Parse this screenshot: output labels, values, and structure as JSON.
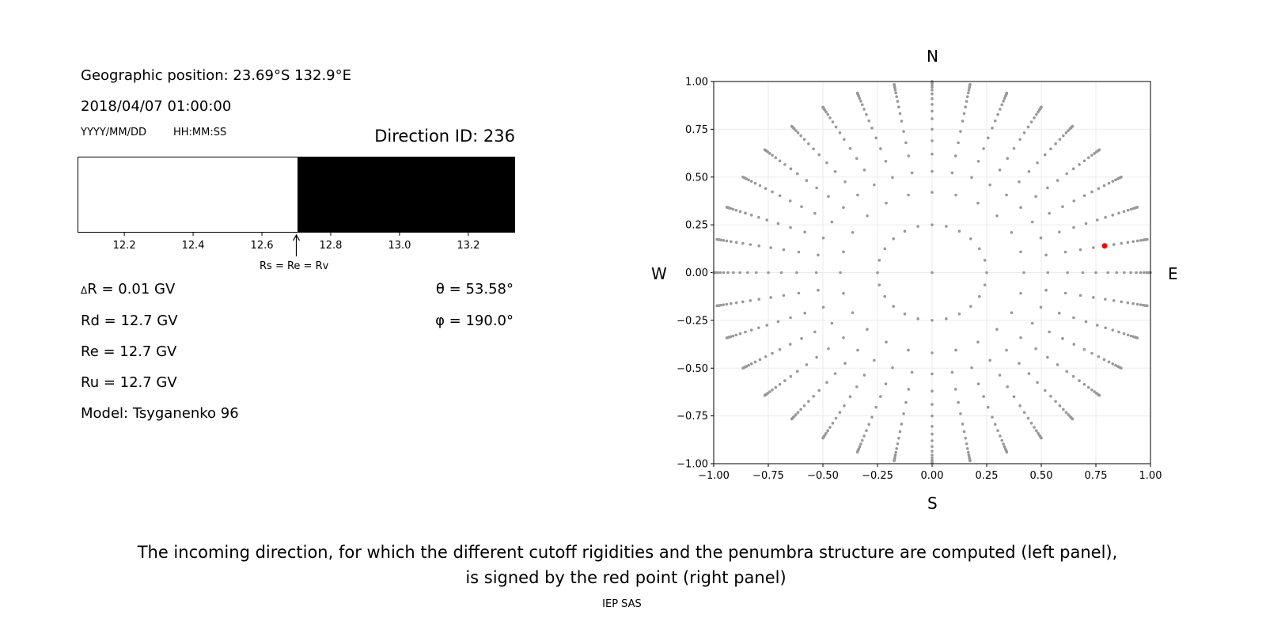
{
  "left_panel": {
    "geo_position": "Geographic position: 23.69°S 132.9°E",
    "datetime": "2018/04/07 01:00:00",
    "date_format": "YYYY/MM/DD",
    "time_format": "HH:MM:SS",
    "direction_id": "Direction ID: 236",
    "delta_r": "R = 0.01 GV",
    "delta_symbol": "Δ",
    "rd": "Rd = 12.7 GV",
    "re": "Re = 12.7 GV",
    "ru": "Ru = 12.7 GV",
    "model": "Model: Tsyganenko 96",
    "theta": "θ = 53.58°",
    "phi": "φ = 190.0°",
    "arrow_label": "Rs = Re = Rv"
  },
  "compass": {
    "n": "N",
    "s": "S",
    "w": "W",
    "e": "E"
  },
  "caption": {
    "line1": "The incoming direction, for which the different cutoff rigidities and the penumbra structure are computed (left panel),",
    "line2": "is signed by the red point (right panel)",
    "credit": "IEP SAS"
  },
  "chart_data": [
    {
      "type": "bar",
      "description_of_marks": "penumbra band: allowed (white) below cutoff, forbidden (black) above",
      "xlim": [
        12.064,
        13.336
      ],
      "xticks": [
        "12.2",
        "12.4",
        "12.6",
        "12.8",
        "13.0",
        "13.2"
      ],
      "xtick_values": [
        12.2,
        12.4,
        12.6,
        12.8,
        13.0,
        13.2
      ],
      "cutoff": 12.7,
      "colors": {
        "below": "#ffffff",
        "above": "#000000"
      }
    },
    {
      "type": "scatter",
      "xlim": [
        -1,
        1
      ],
      "ylim": [
        -1,
        1
      ],
      "grid": true,
      "xticks": [
        "−1.00",
        "−0.75",
        "−0.50",
        "−0.25",
        "0.00",
        "0.25",
        "0.50",
        "0.75",
        "1.00"
      ],
      "yticks": [
        "−1.00",
        "−0.75",
        "−0.50",
        "−0.25",
        "0.00",
        "0.25",
        "0.50",
        "0.75",
        "1.00"
      ],
      "tick_values": [
        -1,
        -0.75,
        -0.5,
        -0.25,
        0,
        0.25,
        0.5,
        0.75,
        1
      ],
      "grid_points": {
        "center": [
          0,
          0
        ],
        "rings": [
          {
            "r": 0.25,
            "n": 24
          },
          {
            "r": 0.42,
            "n": 24
          }
        ],
        "spoke_count": 36,
        "spoke_radii": [
          0.53,
          0.62,
          0.69,
          0.75,
          0.805,
          0.845,
          0.88,
          0.91,
          0.935,
          0.955,
          0.97,
          0.982,
          0.99,
          0.996,
          1.0
        ]
      },
      "selected_point": {
        "x": 0.79,
        "y": 0.14
      },
      "colors": {
        "grid_points": "#999999",
        "selected": "#ff0000"
      }
    }
  ]
}
